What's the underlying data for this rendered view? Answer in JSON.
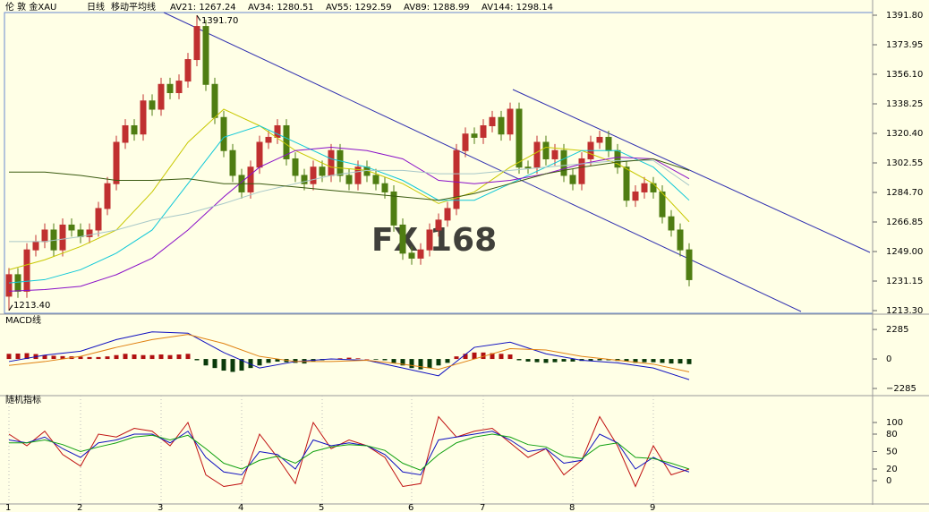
{
  "header": {
    "instrument": "伦 敦 金XAU",
    "period": "日线",
    "indicator": "移动平均线"
  },
  "watermark": [
    "FX",
    "168"
  ],
  "chart_data": [
    {
      "type": "candlestick",
      "categories": [
        "1",
        null,
        null,
        null,
        null,
        null,
        null,
        null,
        "2",
        null,
        null,
        null,
        null,
        null,
        null,
        null,
        null,
        "3",
        null,
        null,
        null,
        null,
        null,
        null,
        null,
        null,
        "4",
        null,
        null,
        null,
        null,
        null,
        null,
        null,
        null,
        "5",
        null,
        null,
        null,
        null,
        null,
        null,
        null,
        null,
        null,
        "6",
        null,
        null,
        null,
        null,
        null,
        null,
        null,
        "7",
        null,
        null,
        null,
        null,
        null,
        null,
        null,
        null,
        null,
        "8",
        null,
        null,
        null,
        null,
        null,
        null,
        null,
        null,
        "9",
        null,
        null,
        null,
        null
      ],
      "open": [
        1222,
        1235,
        1225,
        1250,
        1255,
        1262,
        1250,
        1265,
        1262,
        1258,
        1262,
        1275,
        1290,
        1315,
        1325,
        1320,
        1340,
        1335,
        1350,
        1345,
        1352,
        1365,
        1385,
        1350,
        1330,
        1310,
        1295,
        1285,
        1300,
        1315,
        1318,
        1325,
        1305,
        1295,
        1290,
        1300,
        1295,
        1310,
        1295,
        1290,
        1300,
        1295,
        1290,
        1285,
        1265,
        1248,
        1245,
        1250,
        1262,
        1268,
        1275,
        1310,
        1320,
        1318,
        1325,
        1330,
        1320,
        1335,
        1300,
        1300,
        1315,
        1305,
        1310,
        1295,
        1290,
        1305,
        1315,
        1318,
        1310,
        1300,
        1280,
        1285,
        1290,
        1285,
        1270,
        1262,
        1250
      ],
      "high": [
        1239,
        1239,
        1254,
        1259,
        1266,
        1266,
        1269,
        1269,
        1266,
        1266,
        1279,
        1294,
        1319,
        1329,
        1329,
        1344,
        1344,
        1354,
        1354,
        1356,
        1369,
        1391.7,
        1389,
        1354,
        1334,
        1314,
        1299,
        1304,
        1319,
        1322,
        1329,
        1329,
        1309,
        1299,
        1304,
        1304,
        1314,
        1314,
        1299,
        1304,
        1304,
        1299,
        1294,
        1289,
        1269,
        1252,
        1254,
        1266,
        1272,
        1279,
        1314,
        1324,
        1324,
        1329,
        1334,
        1334,
        1339,
        1339,
        1304,
        1319,
        1319,
        1314,
        1314,
        1299,
        1309,
        1319,
        1322,
        1322,
        1314,
        1304,
        1289,
        1294,
        1294,
        1289,
        1274,
        1266,
        1254
      ],
      "low": [
        1213.4,
        1221,
        1221,
        1246,
        1251,
        1246,
        1246,
        1258,
        1254,
        1254,
        1258,
        1271,
        1286,
        1311,
        1316,
        1316,
        1331,
        1331,
        1341,
        1341,
        1348,
        1361,
        1346,
        1326,
        1306,
        1291,
        1281,
        1281,
        1296,
        1311,
        1314,
        1301,
        1291,
        1286,
        1286,
        1291,
        1291,
        1291,
        1286,
        1286,
        1291,
        1286,
        1281,
        1261,
        1244,
        1241,
        1241,
        1246,
        1258,
        1264,
        1271,
        1306,
        1314,
        1314,
        1321,
        1316,
        1316,
        1296,
        1296,
        1296,
        1301,
        1301,
        1291,
        1286,
        1286,
        1301,
        1311,
        1306,
        1296,
        1276,
        1276,
        1281,
        1281,
        1266,
        1258,
        1246,
        1228
      ],
      "close": [
        1235,
        1225,
        1250,
        1255,
        1262,
        1250,
        1265,
        1262,
        1258,
        1262,
        1275,
        1290,
        1315,
        1325,
        1320,
        1340,
        1335,
        1350,
        1345,
        1352,
        1365,
        1385,
        1350,
        1330,
        1310,
        1295,
        1285,
        1300,
        1315,
        1318,
        1325,
        1305,
        1295,
        1290,
        1300,
        1295,
        1310,
        1295,
        1290,
        1300,
        1295,
        1290,
        1285,
        1265,
        1248,
        1245,
        1250,
        1262,
        1268,
        1275,
        1310,
        1320,
        1318,
        1325,
        1330,
        1320,
        1335,
        1300,
        1300,
        1315,
        1305,
        1310,
        1295,
        1290,
        1305,
        1315,
        1318,
        1310,
        1300,
        1280,
        1285,
        1290,
        1285,
        1270,
        1262,
        1250,
        1232
      ],
      "up_color": "#c03030",
      "down_color": "#4f7d12",
      "ylim": [
        1213.3,
        1391.8
      ],
      "yticks": [
        {
          "value": 1391.8,
          "label": "1391.80"
        },
        1373.95,
        {
          "value": 1356.1,
          "label": "1356.10"
        },
        1338.25,
        {
          "value": 1320.4,
          "label": "1320.40"
        },
        1302.55,
        {
          "value": 1284.7,
          "label": "1284.70"
        },
        1266.85,
        {
          "value": 1249.0,
          "label": "1249.00"
        },
        1231.15,
        {
          "value": 1213.3,
          "label": "1213.30"
        }
      ],
      "annotations": [
        {
          "label": "1391.70",
          "value": 1391.7
        },
        {
          "label": "1213.40",
          "value": 1213.4
        }
      ],
      "series": [
        {
          "name": "AV21: 1267.24",
          "color": "#c8c800",
          "x": [
            0,
            4,
            8,
            12,
            16,
            20,
            24,
            28,
            32,
            36,
            40,
            44,
            48,
            52,
            56,
            60,
            64,
            68,
            72,
            76
          ],
          "values": [
            1238,
            1244,
            1252,
            1262,
            1285,
            1315,
            1335,
            1325,
            1310,
            1300,
            1298,
            1290,
            1278,
            1285,
            1300,
            1312,
            1310,
            1302,
            1290,
            1267
          ]
        },
        {
          "name": "AV34: 1280.51",
          "color": "#10c8d8",
          "x": [
            0,
            4,
            8,
            12,
            16,
            20,
            24,
            28,
            32,
            36,
            40,
            44,
            48,
            52,
            56,
            60,
            64,
            68,
            72,
            76
          ],
          "values": [
            1230,
            1232,
            1238,
            1248,
            1262,
            1290,
            1318,
            1325,
            1315,
            1305,
            1300,
            1292,
            1280,
            1280,
            1290,
            1300,
            1310,
            1310,
            1300,
            1280
          ]
        },
        {
          "name": "AV55: 1292.59",
          "color": "#8a10c8",
          "x": [
            0,
            4,
            8,
            12,
            16,
            20,
            24,
            28,
            32,
            36,
            40,
            44,
            48,
            52,
            56,
            60,
            64,
            68,
            72,
            76
          ],
          "values": [
            1225,
            1226,
            1228,
            1235,
            1245,
            1262,
            1282,
            1300,
            1310,
            1312,
            1310,
            1305,
            1292,
            1290,
            1292,
            1296,
            1302,
            1306,
            1305,
            1293
          ]
        },
        {
          "name": "AV89: 1288.99",
          "color": "#a8c8c8",
          "x": [
            0,
            4,
            8,
            12,
            16,
            20,
            24,
            28,
            32,
            36,
            40,
            44,
            48,
            52,
            56,
            60,
            64,
            68,
            72,
            76
          ],
          "values": [
            1255,
            1255,
            1258,
            1262,
            1268,
            1272,
            1278,
            1285,
            1290,
            1295,
            1298,
            1298,
            1296,
            1296,
            1298,
            1300,
            1302,
            1304,
            1304,
            1289
          ]
        },
        {
          "name": "AV144: 1298.14",
          "color": "#3a5a10",
          "x": [
            0,
            4,
            8,
            12,
            16,
            20,
            24,
            28,
            32,
            36,
            40,
            44,
            48,
            52,
            56,
            60,
            64,
            68,
            72,
            76
          ],
          "values": [
            1297,
            1297,
            1295,
            1292,
            1292,
            1293,
            1290,
            1290,
            1288,
            1286,
            1284,
            1282,
            1280,
            1284,
            1290,
            1296,
            1300,
            1303,
            1305,
            1298
          ]
        }
      ]
    },
    {
      "type": "macd",
      "title": "MACD线",
      "ylim": [
        -2700,
        3400
      ],
      "yticks": [
        2285,
        0,
        {
          "value": -2285,
          "label": "−2285"
        }
      ],
      "histogram": {
        "pos_color": "#b01010",
        "neg_color": "#0a3a0a",
        "values": [
          400,
          420,
          450,
          380,
          300,
          250,
          220,
          200,
          180,
          150,
          150,
          200,
          300,
          400,
          350,
          300,
          300,
          350,
          300,
          350,
          400,
          -100,
          -500,
          -700,
          -900,
          -1000,
          -900,
          -700,
          -500,
          -300,
          -200,
          -250,
          -300,
          -350,
          -200,
          -100,
          0,
          50,
          100,
          50,
          0,
          -50,
          -100,
          -300,
          -500,
          -700,
          -800,
          -700,
          -500,
          -300,
          200,
          400,
          500,
          500,
          450,
          400,
          350,
          -100,
          -200,
          -250,
          -300,
          -250,
          -200,
          -200,
          -150,
          -150,
          -100,
          -100,
          -150,
          -200,
          -300,
          -250,
          -250,
          -300,
          -350,
          -350,
          -400
        ]
      },
      "series": [
        {
          "color": "#1010c0",
          "x": [
            0,
            4,
            8,
            12,
            16,
            20,
            24,
            28,
            32,
            36,
            40,
            44,
            48,
            52,
            56,
            60,
            64,
            68,
            72,
            76
          ],
          "values": [
            -200,
            300,
            600,
            1500,
            2100,
            2000,
            500,
            -700,
            -200,
            0,
            -100,
            -700,
            -1300,
            900,
            1300,
            400,
            -100,
            -300,
            -700,
            -1600
          ]
        },
        {
          "color": "#e08010",
          "x": [
            0,
            4,
            8,
            12,
            16,
            20,
            24,
            28,
            32,
            36,
            40,
            44,
            48,
            52,
            56,
            60,
            64,
            68,
            72,
            76
          ],
          "values": [
            -500,
            -200,
            200,
            900,
            1500,
            1900,
            1200,
            200,
            -200,
            -200,
            -100,
            -400,
            -800,
            0,
            800,
            700,
            200,
            -100,
            -400,
            -1000
          ]
        }
      ]
    },
    {
      "type": "line",
      "title": "随机指标",
      "ylim": [
        -40,
        135
      ],
      "yticks": [
        100,
        80,
        50,
        20,
        0
      ],
      "series": [
        {
          "color": "#c01010",
          "x": [
            0,
            2,
            4,
            6,
            8,
            10,
            12,
            14,
            16,
            18,
            20,
            22,
            24,
            26,
            28,
            30,
            32,
            34,
            36,
            38,
            40,
            42,
            44,
            46,
            48,
            50,
            52,
            54,
            56,
            58,
            60,
            62,
            64,
            66,
            68,
            70,
            72,
            74,
            76
          ],
          "values": [
            80,
            60,
            85,
            45,
            25,
            80,
            75,
            90,
            85,
            60,
            100,
            10,
            -10,
            -5,
            80,
            40,
            -5,
            100,
            55,
            70,
            60,
            40,
            -10,
            -5,
            110,
            75,
            85,
            90,
            65,
            40,
            55,
            10,
            35,
            110,
            60,
            -10,
            60,
            10,
            20
          ]
        },
        {
          "color": "#1010c0",
          "x": [
            0,
            2,
            4,
            6,
            8,
            10,
            12,
            14,
            16,
            18,
            20,
            22,
            24,
            26,
            28,
            30,
            32,
            34,
            36,
            38,
            40,
            42,
            44,
            46,
            48,
            50,
            52,
            54,
            56,
            58,
            60,
            62,
            64,
            66,
            68,
            70,
            72,
            74,
            76
          ],
          "values": [
            70,
            65,
            75,
            55,
            40,
            65,
            70,
            80,
            80,
            65,
            85,
            40,
            15,
            10,
            50,
            45,
            20,
            70,
            60,
            65,
            60,
            45,
            15,
            10,
            70,
            75,
            80,
            85,
            70,
            50,
            55,
            30,
            35,
            80,
            65,
            20,
            40,
            25,
            15
          ]
        },
        {
          "color": "#10a010",
          "x": [
            0,
            2,
            4,
            6,
            8,
            10,
            12,
            14,
            16,
            18,
            20,
            22,
            24,
            26,
            28,
            30,
            32,
            34,
            36,
            38,
            40,
            42,
            44,
            46,
            48,
            50,
            52,
            54,
            56,
            58,
            60,
            62,
            64,
            66,
            68,
            70,
            72,
            74,
            76
          ],
          "values": [
            65,
            65,
            70,
            62,
            50,
            58,
            65,
            75,
            78,
            70,
            78,
            55,
            30,
            20,
            35,
            42,
            30,
            50,
            58,
            62,
            60,
            52,
            30,
            18,
            45,
            65,
            75,
            80,
            75,
            62,
            58,
            42,
            38,
            60,
            65,
            40,
            38,
            30,
            20
          ]
        }
      ]
    }
  ]
}
